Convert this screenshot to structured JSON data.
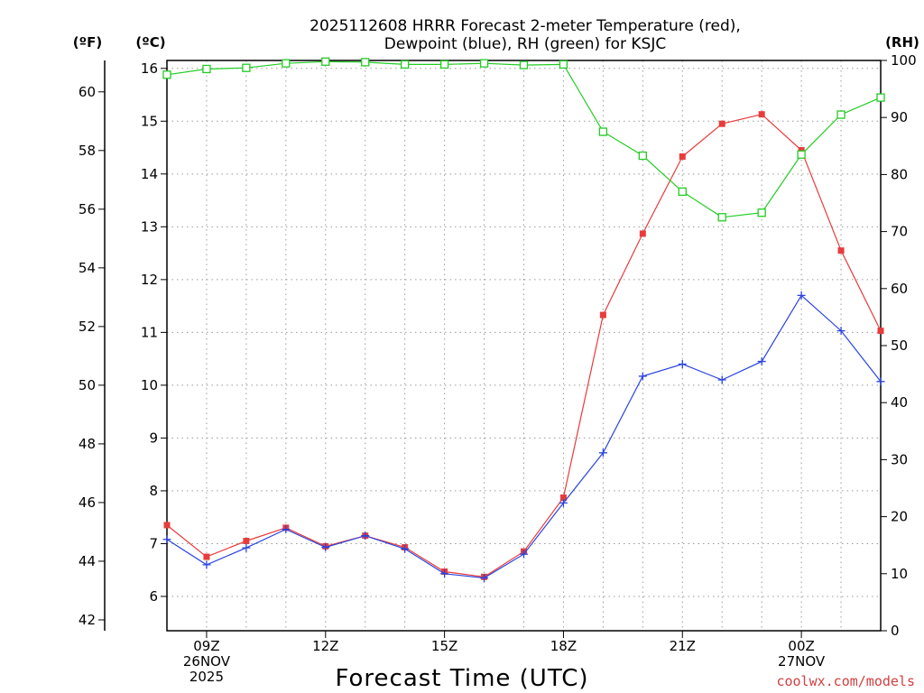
{
  "chart_data": {
    "type": "line",
    "title": [
      "2025112608 HRRR Forecast 2-meter Temperature (red),",
      "Dewpoint (blue), RH (green) for KSJC"
    ],
    "xlabel": "Forecast Time (UTC)",
    "credit": "coolwx.com/models",
    "units": {
      "fahrenheit": "(ºF)",
      "celsius": "(ºC)",
      "rh": "(RH)"
    },
    "x_hours": [
      8,
      9,
      10,
      11,
      12,
      13,
      14,
      15,
      16,
      17,
      18,
      19,
      20,
      21,
      22,
      23,
      24,
      25,
      26
    ],
    "xlim": [
      8,
      26
    ],
    "x_ticks": [
      {
        "hour": 9,
        "lines": [
          "09Z",
          "26NOV",
          "2025"
        ]
      },
      {
        "hour": 12,
        "lines": [
          "12Z"
        ]
      },
      {
        "hour": 15,
        "lines": [
          "15Z"
        ]
      },
      {
        "hour": 18,
        "lines": [
          "18Z"
        ]
      },
      {
        "hour": 21,
        "lines": [
          "21Z"
        ]
      },
      {
        "hour": 24,
        "lines": [
          "00Z",
          "27NOV"
        ]
      }
    ],
    "celsius_axis": {
      "ylim": [
        5.35,
        16.15
      ],
      "ticks": [
        "6",
        "7",
        "8",
        "9",
        "10",
        "11",
        "12",
        "13",
        "14",
        "15",
        "16"
      ]
    },
    "fahrenheit_axis": {
      "ticks": [
        "42",
        "44",
        "46",
        "48",
        "50",
        "52",
        "54",
        "56",
        "58",
        "60"
      ]
    },
    "rh_axis": {
      "ylim": [
        0,
        100
      ],
      "ticks": [
        "0",
        "10",
        "20",
        "30",
        "40",
        "50",
        "60",
        "70",
        "80",
        "90",
        "100"
      ]
    },
    "series": [
      {
        "name": "Temperature",
        "color": "#e83c3c",
        "marker": "filled-square",
        "axis": "celsius",
        "values": [
          7.35,
          6.75,
          7.05,
          7.3,
          6.95,
          7.15,
          6.93,
          6.47,
          6.37,
          6.85,
          7.87,
          11.33,
          12.87,
          14.33,
          14.95,
          15.13,
          14.45,
          12.55,
          11.03
        ]
      },
      {
        "name": "Dewpoint",
        "color": "#2a44e0",
        "marker": "plus",
        "axis": "celsius",
        "values": [
          7.08,
          6.6,
          6.92,
          7.27,
          6.93,
          7.15,
          6.9,
          6.43,
          6.35,
          6.8,
          7.77,
          8.72,
          10.17,
          10.4,
          10.1,
          10.45,
          11.7,
          11.03,
          10.07
        ]
      },
      {
        "name": "RH",
        "color": "#22cc22",
        "marker": "open-square",
        "axis": "rh",
        "values": [
          97.5,
          98.5,
          98.7,
          99.5,
          99.8,
          99.7,
          99.3,
          99.3,
          99.5,
          99.2,
          99.3,
          87.5,
          83.3,
          77.0,
          72.5,
          73.3,
          83.5,
          90.5,
          93.5
        ]
      }
    ]
  }
}
